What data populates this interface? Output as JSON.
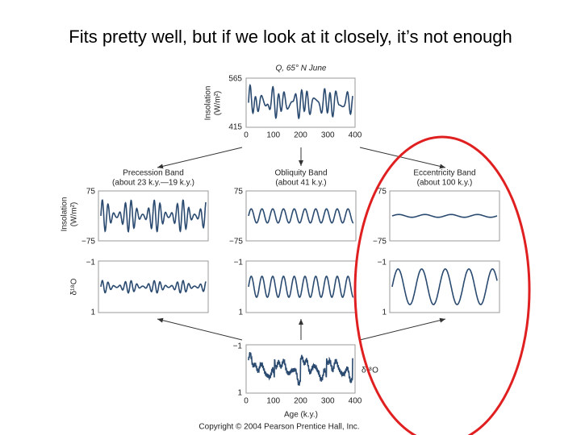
{
  "title": "Fits pretty well, but if we look at it closely, it’s not enough",
  "figure": {
    "top": {
      "label": "Q, 65° N June",
      "y_label": [
        "Insolation",
        "(W/m²)"
      ],
      "y_ticks": [
        "565",
        "415"
      ],
      "x_ticks": [
        "0",
        "100",
        "200",
        "300",
        "400"
      ]
    },
    "bands": [
      {
        "title": "Precession Band",
        "period": "(about 23 k.y.—19 k.y.)",
        "insolation_ticks": [
          "75",
          "−75"
        ],
        "d18o_ticks": [
          "−1",
          "1"
        ]
      },
      {
        "title": "Obliquity Band",
        "period": "(about 41 k.y.)",
        "insolation_ticks": [
          "75",
          "−75"
        ],
        "d18o_ticks": [
          "−1",
          "1"
        ]
      },
      {
        "title": "Eccentricity Band",
        "period": "(about 100 k.y.)",
        "insolation_ticks": [
          "75",
          "−75"
        ],
        "d18o_ticks": [
          "−1",
          "1"
        ]
      }
    ],
    "row_labels": {
      "insolation": [
        "Insolation",
        "(W/m²)"
      ],
      "d18o": "δ¹⁸O"
    },
    "bottom": {
      "y_ticks": [
        "−1",
        "1"
      ],
      "label": "δ¹⁸O",
      "x_ticks": [
        "0",
        "100",
        "200",
        "300",
        "400"
      ],
      "x_label": "Age (k.y.)"
    },
    "copyright": "Copyright © 2004 Pearson Prentice Hall, Inc."
  }
}
